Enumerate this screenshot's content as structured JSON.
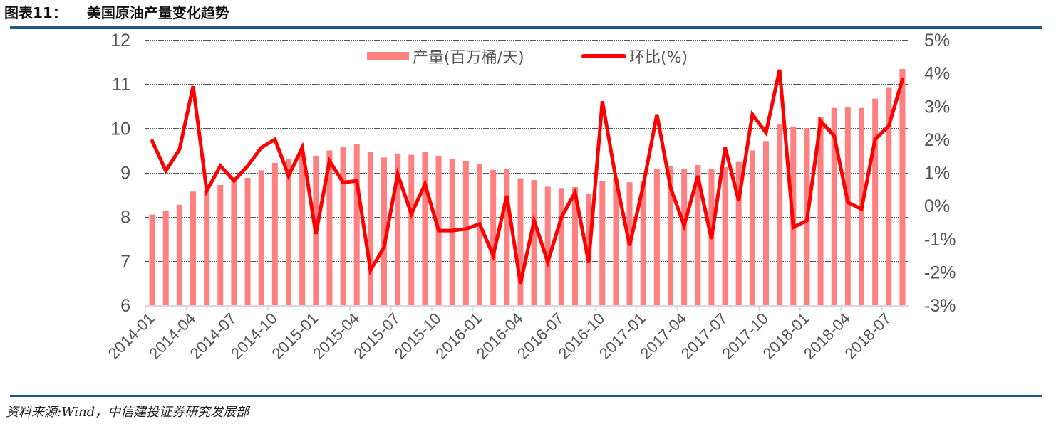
{
  "title": {
    "number": "图表11：",
    "text": "美国原油产量变化趋势"
  },
  "source": "资料来源:Wind，中信建投证券研究发展部",
  "colors": {
    "bar": "#ff8080",
    "line": "#ff0000",
    "rule": "#1c5a8c",
    "axis_text": "#555555",
    "grid": "#555555"
  },
  "chart_data": {
    "type": "bar+line",
    "title": "美国原油产量变化趋势",
    "xlabel": "",
    "ylabel_left": "产量(百万桶/天)",
    "ylabel_right": "环比(%)",
    "ylim_left": [
      6,
      12
    ],
    "ylim_right": [
      -3,
      5
    ],
    "left_ticks": [
      "12",
      "11",
      "10",
      "9",
      "8",
      "7",
      "6"
    ],
    "right_ticks": [
      "5%",
      "4%",
      "3%",
      "2%",
      "1%",
      "0%",
      "-1%",
      "-2%",
      "-3%"
    ],
    "x_tick_labels": [
      "2014-01",
      "2014-04",
      "2014-07",
      "2014-10",
      "2015-01",
      "2015-04",
      "2015-07",
      "2015-10",
      "2016-01",
      "2016-04",
      "2016-07",
      "2016-10",
      "2017-01",
      "2017-04",
      "2017-07",
      "2017-10",
      "2018-01",
      "2018-04",
      "2018-07"
    ],
    "legend": [
      {
        "label": "产量(百万桶/天)",
        "type": "bar"
      },
      {
        "label": "环比(%)",
        "type": "line"
      }
    ],
    "legend_position": "top-center",
    "grid": "horizontal dashed",
    "categories": [
      "2014-01",
      "2014-02",
      "2014-03",
      "2014-04",
      "2014-05",
      "2014-06",
      "2014-07",
      "2014-08",
      "2014-09",
      "2014-10",
      "2014-11",
      "2014-12",
      "2015-01",
      "2015-02",
      "2015-03",
      "2015-04",
      "2015-05",
      "2015-06",
      "2015-07",
      "2015-08",
      "2015-09",
      "2015-10",
      "2015-11",
      "2015-12",
      "2016-01",
      "2016-02",
      "2016-03",
      "2016-04",
      "2016-05",
      "2016-06",
      "2016-07",
      "2016-08",
      "2016-09",
      "2016-10",
      "2016-11",
      "2016-12",
      "2017-01",
      "2017-02",
      "2017-03",
      "2017-04",
      "2017-05",
      "2017-06",
      "2017-07",
      "2017-08",
      "2017-09",
      "2017-10",
      "2017-11",
      "2017-12",
      "2018-01",
      "2018-02",
      "2018-03",
      "2018-04",
      "2018-05",
      "2018-06",
      "2018-07",
      "2018-08"
    ],
    "series": [
      {
        "name": "产量(百万桶/天)",
        "type": "bar",
        "axis": "left",
        "values": [
          8.05,
          8.13,
          8.27,
          8.57,
          8.6,
          8.72,
          8.8,
          8.88,
          9.05,
          9.22,
          9.3,
          9.45,
          9.38,
          9.5,
          9.57,
          9.64,
          9.46,
          9.34,
          9.43,
          9.4,
          9.46,
          9.38,
          9.31,
          9.25,
          9.2,
          9.06,
          9.08,
          8.87,
          8.83,
          8.68,
          8.65,
          8.67,
          8.52,
          8.8,
          8.88,
          8.78,
          8.8,
          9.09,
          9.14,
          9.09,
          9.17,
          9.08,
          9.12,
          9.24,
          9.5,
          9.71,
          10.1,
          10.04,
          10.0,
          10.25,
          10.46,
          10.47,
          10.46,
          10.67,
          10.93,
          11.34
        ]
      },
      {
        "name": "环比(%)",
        "type": "line",
        "axis": "right",
        "values": [
          1.95,
          1.05,
          1.7,
          3.6,
          0.45,
          1.2,
          0.75,
          1.2,
          1.75,
          2.0,
          0.9,
          1.75,
          -0.85,
          1.35,
          0.7,
          0.75,
          -1.95,
          -1.25,
          0.95,
          -0.25,
          0.65,
          -0.75,
          -0.75,
          -0.7,
          -0.55,
          -1.5,
          0.3,
          -2.35,
          -0.45,
          -1.7,
          -0.35,
          0.4,
          -1.7,
          3.15,
          0.8,
          -1.2,
          0.6,
          2.75,
          0.55,
          -0.6,
          0.9,
          -1.0,
          1.75,
          0.15,
          2.75,
          2.2,
          4.1,
          -0.65,
          -0.45,
          2.55,
          2.1,
          0.1,
          -0.1,
          2.0,
          2.4,
          3.8
        ]
      }
    ]
  }
}
